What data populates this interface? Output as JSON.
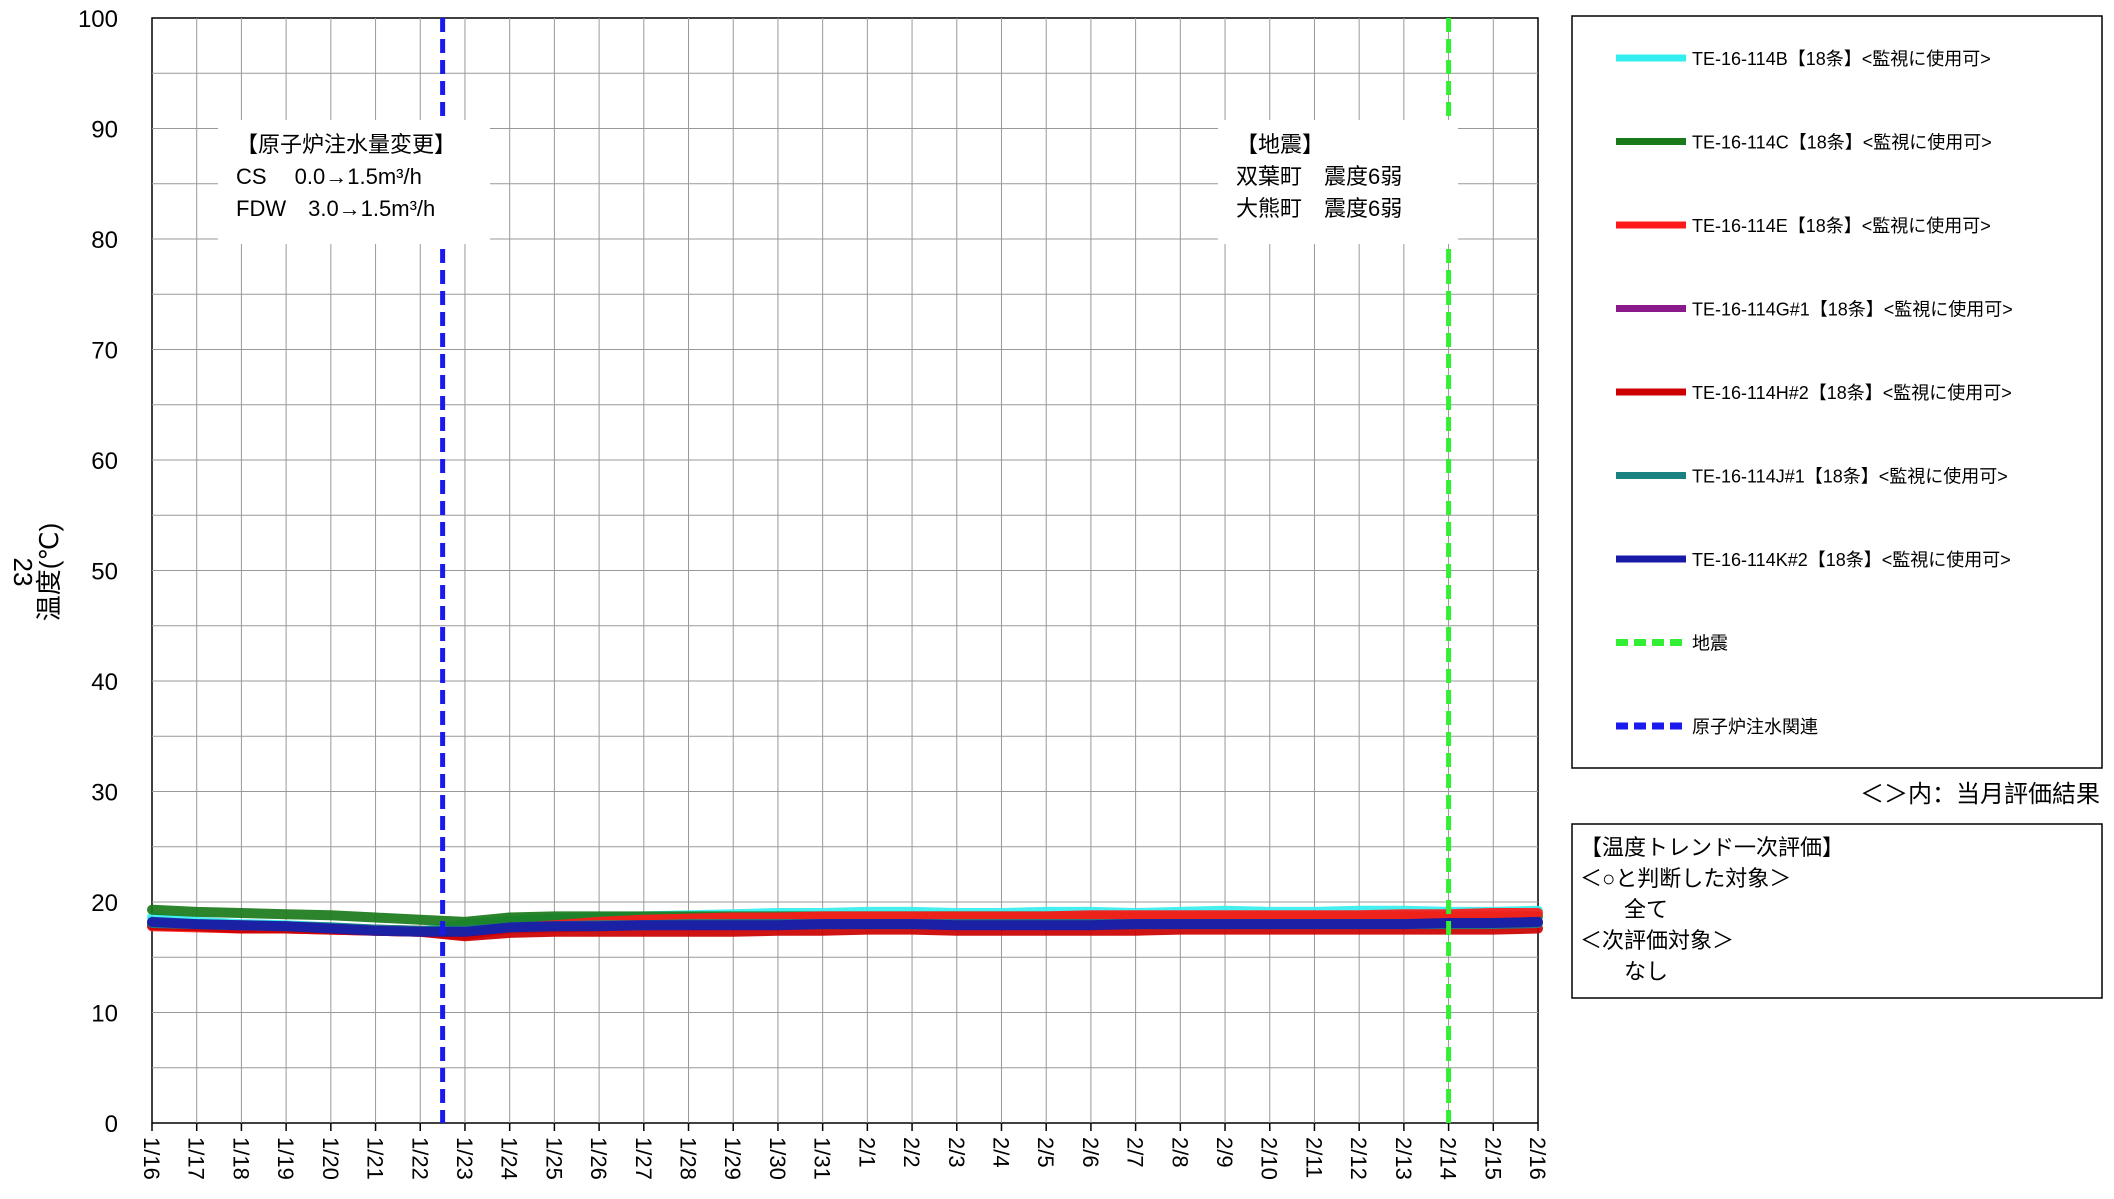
{
  "chart_data": {
    "type": "line",
    "ylabel": "温度(℃)",
    "side_label": "23",
    "ylim": [
      0,
      100
    ],
    "yticks": [
      0,
      10,
      20,
      30,
      40,
      50,
      60,
      70,
      80,
      90,
      100
    ],
    "x_categories": [
      "1/16",
      "1/17",
      "1/18",
      "1/19",
      "1/20",
      "1/21",
      "1/22",
      "1/23",
      "1/24",
      "1/25",
      "1/26",
      "1/27",
      "1/28",
      "1/29",
      "1/30",
      "1/31",
      "2/1",
      "2/2",
      "2/3",
      "2/4",
      "2/5",
      "2/6",
      "2/7",
      "2/8",
      "2/9",
      "2/10",
      "2/11",
      "2/12",
      "2/13",
      "2/14",
      "2/15",
      "2/16"
    ],
    "grid": true,
    "series": [
      {
        "name": "TE-16-114B【18条】<監視に使用可>",
        "color": "#33eeee",
        "values": [
          18.6,
          18.2,
          18.0,
          17.9,
          17.7,
          17.5,
          17.3,
          18.0,
          18.3,
          18.5,
          18.6,
          18.7,
          18.8,
          18.9,
          19.0,
          19.0,
          19.1,
          19.1,
          19.0,
          19.0,
          19.1,
          19.1,
          19.0,
          19.1,
          19.2,
          19.1,
          19.1,
          19.2,
          19.2,
          19.1,
          19.1,
          19.2
        ]
      },
      {
        "name": "TE-16-114C【18条】<監視に使用可>",
        "color": "#1a7a1a",
        "values": [
          19.3,
          19.1,
          19.0,
          18.9,
          18.8,
          18.6,
          18.4,
          18.2,
          18.6,
          18.7,
          18.7,
          18.7,
          18.7,
          18.7,
          18.7,
          18.7,
          18.7,
          18.7,
          18.7,
          18.7,
          18.7,
          18.7,
          18.7,
          18.7,
          18.7,
          18.7,
          18.7,
          18.7,
          18.7,
          18.7,
          18.7,
          18.7
        ]
      },
      {
        "name": "TE-16-114E【18条】<監視に使用可>",
        "color": "#ff1a1a",
        "values": [
          17.8,
          17.7,
          17.6,
          17.6,
          17.5,
          17.4,
          17.3,
          17.0,
          17.6,
          17.9,
          18.2,
          18.4,
          18.5,
          18.6,
          18.6,
          18.7,
          18.7,
          18.7,
          18.7,
          18.7,
          18.7,
          18.8,
          18.8,
          18.8,
          18.8,
          18.8,
          18.8,
          18.8,
          18.9,
          18.9,
          19.0,
          19.0
        ]
      },
      {
        "name": "TE-16-114G#1【18条】<監視に使用可>",
        "color": "#8a1a8a",
        "values": [
          18.0,
          17.9,
          17.8,
          17.8,
          17.6,
          17.5,
          17.4,
          17.3,
          17.6,
          17.7,
          17.8,
          17.9,
          17.9,
          18.0,
          18.0,
          18.0,
          18.0,
          18.0,
          18.0,
          18.0,
          18.0,
          18.0,
          18.0,
          18.0,
          18.0,
          18.0,
          18.0,
          18.0,
          18.0,
          18.0,
          18.0,
          18.1
        ]
      },
      {
        "name": "TE-16-114H#2【18条】<監視に使用可>",
        "color": "#cc0000",
        "values": [
          17.9,
          17.8,
          17.6,
          17.6,
          17.5,
          17.4,
          17.3,
          16.9,
          17.2,
          17.3,
          17.3,
          17.3,
          17.3,
          17.3,
          17.4,
          17.4,
          17.5,
          17.5,
          17.4,
          17.4,
          17.4,
          17.4,
          17.4,
          17.5,
          17.5,
          17.5,
          17.5,
          17.5,
          17.5,
          17.5,
          17.5,
          17.6
        ]
      },
      {
        "name": "TE-16-114J#1【18条】<監視に使用可>",
        "color": "#1a8080",
        "values": [
          18.1,
          18.0,
          17.9,
          17.8,
          17.7,
          17.5,
          17.4,
          17.4,
          17.7,
          17.8,
          17.9,
          17.9,
          18.0,
          18.0,
          18.0,
          18.0,
          18.0,
          18.0,
          18.0,
          18.0,
          18.0,
          18.0,
          18.0,
          18.0,
          18.0,
          18.0,
          18.0,
          18.0,
          18.0,
          18.0,
          18.0,
          18.1
        ]
      },
      {
        "name": "TE-16-114K#2【18条】<監視に使用可>",
        "color": "#1a1aa8",
        "values": [
          18.2,
          18.0,
          17.9,
          17.8,
          17.6,
          17.4,
          17.3,
          17.3,
          17.7,
          17.8,
          17.8,
          17.9,
          17.9,
          17.9,
          17.9,
          18.0,
          18.0,
          18.0,
          17.9,
          17.9,
          17.9,
          17.9,
          18.0,
          18.0,
          18.0,
          18.0,
          18.0,
          18.0,
          18.0,
          18.1,
          18.1,
          18.2
        ]
      }
    ],
    "event_lines": [
      {
        "name": "地震",
        "x": "2/14",
        "color": "#33ee33"
      },
      {
        "name": "原子炉注水関連",
        "x": "1/22-1/23",
        "color": "#1a1aee"
      }
    ],
    "annotations": [
      {
        "lines": [
          "【原子炉注水量変更】",
          "CS　 0.0→1.5m³/h",
          "FDW　3.0→1.5m³/h"
        ]
      },
      {
        "lines": [
          "【地震】",
          "双葉町　震度6弱",
          "大熊町　震度6弱"
        ]
      }
    ],
    "legend_placement": "right",
    "legend_note": "＜＞内：当月評価結果",
    "evaluation_panel": {
      "lines": [
        "【温度トレンド一次評価】",
        "＜○と判断した対象＞",
        "　　全て",
        "＜次評価対象＞",
        "　　なし"
      ]
    }
  }
}
